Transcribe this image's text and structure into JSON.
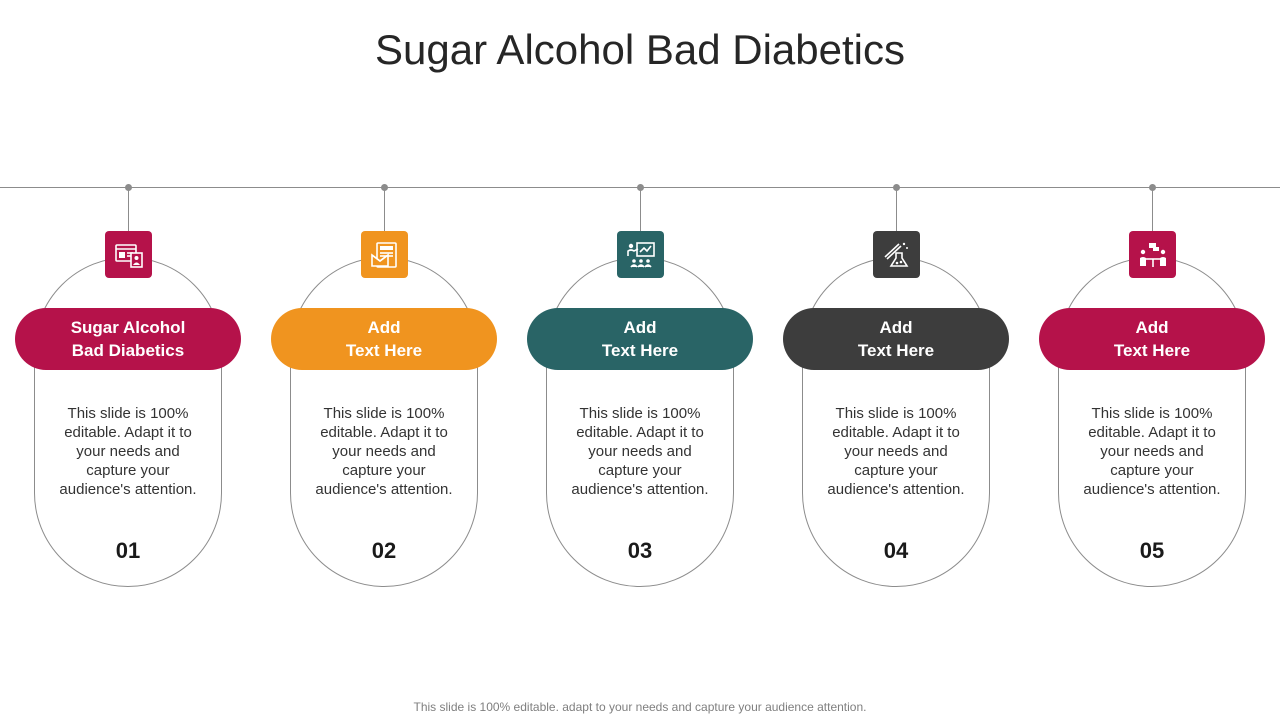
{
  "title": "Sugar Alcohol Bad Diabetics",
  "footer": "This slide is 100% editable. adapt to your needs and capture your audience attention.",
  "steps": [
    {
      "label": "Sugar Alcohol\nBad Diabetics",
      "description": "This slide is 100% editable. Adapt it to your needs and capture your audience's attention.",
      "number": "01",
      "color": "#b5124a",
      "icon": "web-profile-icon"
    },
    {
      "label": "Add\nText Here",
      "description": "This slide is 100% editable. Adapt it to your needs and capture your audience's attention.",
      "number": "02",
      "color": "#f0941f",
      "icon": "newspaper-icon"
    },
    {
      "label": "Add\nText Here",
      "description": "This slide is 100% editable. Adapt it to your needs and capture your audience's attention.",
      "number": "03",
      "color": "#296466",
      "icon": "presentation-icon"
    },
    {
      "label": "Add\nText Here",
      "description": "This slide is 100% editable. Adapt it to your needs and capture your audience's attention.",
      "number": "04",
      "color": "#3d3d3d",
      "icon": "lab-flask-icon"
    },
    {
      "label": "Add\nText Here",
      "description": "This slide is 100% editable. Adapt it to your needs and capture your audience's attention.",
      "number": "05",
      "color": "#b5124a",
      "icon": "meeting-icon"
    }
  ]
}
